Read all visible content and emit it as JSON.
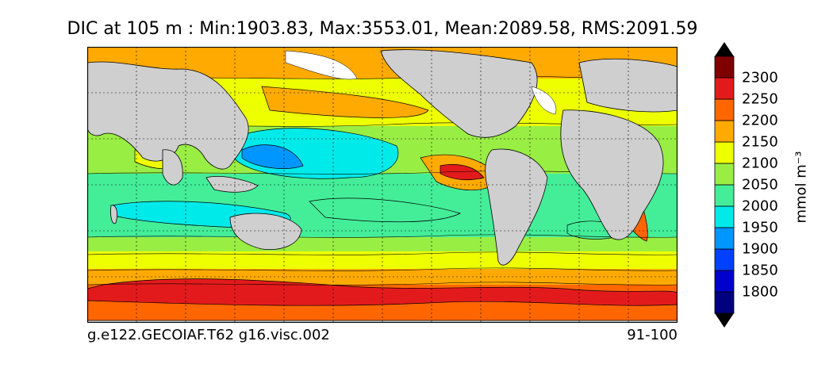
{
  "title": "DIC at 105 m : Min:1903.83, Max:3553.01, Mean:2089.58, RMS:2091.59",
  "footer": {
    "left": "g.e122.GECOIAF.T62 g16.visc.002",
    "right": "91-100"
  },
  "colorbar": {
    "label": "mmol m⁻³",
    "ticks": [
      "2300",
      "2250",
      "2200",
      "2150",
      "2100",
      "2050",
      "2000",
      "1950",
      "1900",
      "1850",
      "1800"
    ],
    "levels": [
      {
        "color": "#000080"
      },
      {
        "color": "#0000cd"
      },
      {
        "color": "#0040ff"
      },
      {
        "color": "#0096ff"
      },
      {
        "color": "#00eaea"
      },
      {
        "color": "#44ee99"
      },
      {
        "color": "#99ee44"
      },
      {
        "color": "#eeff00"
      },
      {
        "color": "#ffaa00"
      },
      {
        "color": "#ff6600"
      },
      {
        "color": "#e31a1c"
      },
      {
        "color": "#800000"
      }
    ]
  },
  "map": {
    "land_color": "#cfcfcf",
    "ice_color": "#ffffff"
  }
}
